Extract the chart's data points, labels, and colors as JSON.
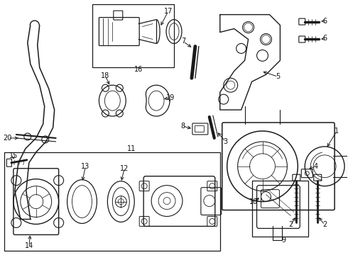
{
  "bg_color": "#ffffff",
  "line_color": "#1a1a1a",
  "label_fontsize": 7.0,
  "figsize": [
    4.9,
    3.6
  ],
  "dpi": 100
}
